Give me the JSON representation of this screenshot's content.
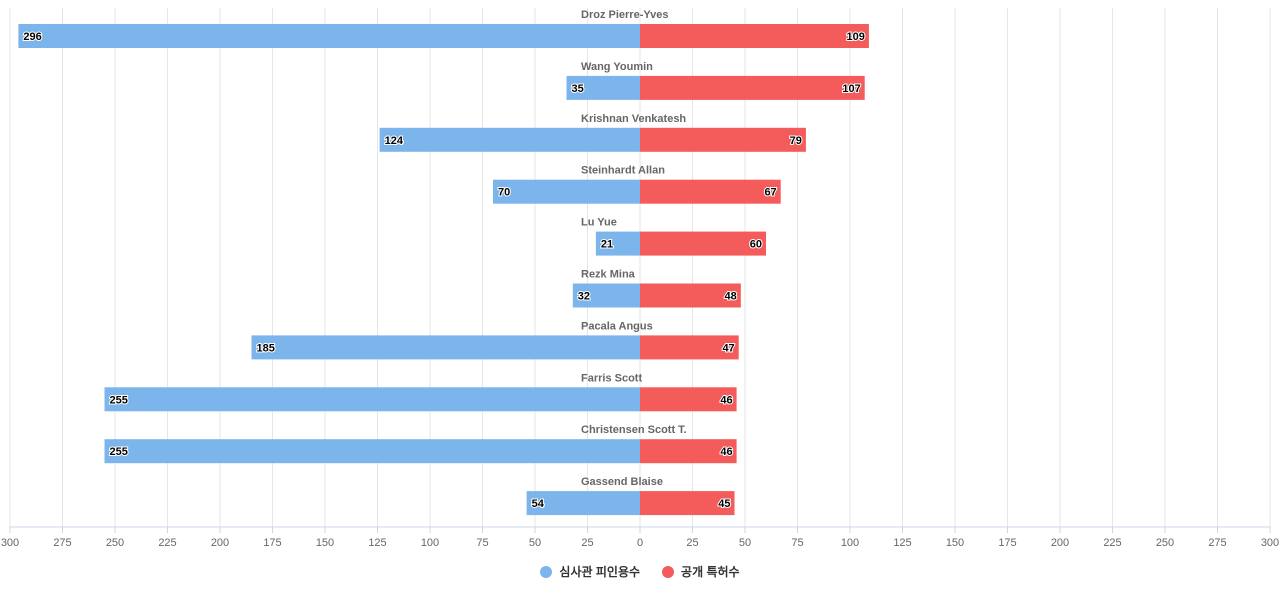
{
  "chart_data": {
    "type": "bar",
    "orientation": "horizontal-diverging",
    "categories": [
      "Droz Pierre-Yves",
      "Wang Youmin",
      "Krishnan Venkatesh",
      "Steinhardt Allan",
      "Lu Yue",
      "Rezk Mina",
      "Pacala Angus",
      "Farris Scott",
      "Christensen Scott T.",
      "Gassend Blaise"
    ],
    "series": [
      {
        "name": "심사관 피인용수",
        "side": "left",
        "color": "#7cb5ec",
        "values": [
          296,
          35,
          124,
          70,
          21,
          32,
          185,
          255,
          255,
          54
        ]
      },
      {
        "name": "공개 특허수",
        "side": "right",
        "color": "#f45b5b",
        "values": [
          109,
          107,
          79,
          67,
          60,
          48,
          47,
          46,
          46,
          45
        ]
      }
    ],
    "xlim": [
      -300,
      300
    ],
    "x_tick_step": 25,
    "x_tick_labels": [
      "300",
      "275",
      "250",
      "225",
      "200",
      "175",
      "150",
      "125",
      "100",
      "75",
      "50",
      "25",
      "0",
      "25",
      "50",
      "75",
      "100",
      "125",
      "150",
      "175",
      "200",
      "225",
      "250",
      "275",
      "300"
    ],
    "grid": true,
    "data_labels": true,
    "legend_position": "bottom-center",
    "title": "",
    "xlabel": "",
    "ylabel": ""
  }
}
